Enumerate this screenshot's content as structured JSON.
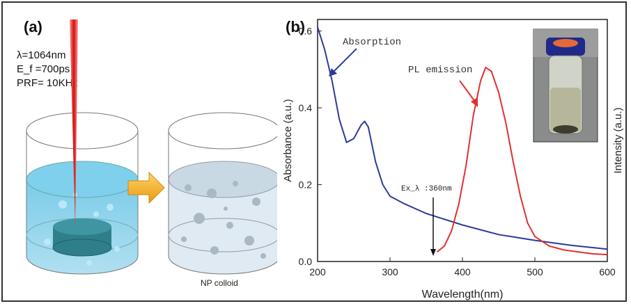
{
  "panel_a": {
    "tag": "(a)",
    "params": [
      "λ=1064nm",
      "E_f =700ps",
      "PRF= 10KHz"
    ],
    "product_label": "NP colloid"
  },
  "panel_b": {
    "tag": "(b)",
    "annotations": {
      "absorption": "Absorption",
      "pl": "PL emission",
      "excitation": "Ex_λ :360nm"
    }
  },
  "chart_data": {
    "type": "line",
    "xlabel": "Wavelength(nm)",
    "ylabel": "Absorbance (a.u.)",
    "y2label": "Intensity (a.u.)",
    "xlim": [
      200,
      600
    ],
    "ylim": [
      0,
      0.63
    ],
    "xticks": [
      200,
      300,
      400,
      500,
      600
    ],
    "yticks": [
      0.0,
      0.2,
      0.4,
      0.6
    ],
    "series": [
      {
        "name": "Absorption",
        "color": "#2b3a9a",
        "x": [
          200,
          210,
          220,
          230,
          240,
          250,
          260,
          265,
          270,
          280,
          290,
          300,
          320,
          350,
          400,
          450,
          500,
          550,
          600
        ],
        "y": [
          0.61,
          0.55,
          0.47,
          0.37,
          0.31,
          0.32,
          0.355,
          0.365,
          0.35,
          0.26,
          0.2,
          0.17,
          0.15,
          0.125,
          0.095,
          0.07,
          0.055,
          0.042,
          0.032
        ]
      },
      {
        "name": "PL emission",
        "color": "#e03030",
        "x": [
          365,
          375,
          385,
          395,
          405,
          415,
          425,
          432,
          440,
          450,
          460,
          470,
          480,
          490,
          500,
          520,
          540,
          560,
          580,
          600
        ],
        "y": [
          0.025,
          0.04,
          0.08,
          0.15,
          0.25,
          0.38,
          0.47,
          0.505,
          0.495,
          0.44,
          0.36,
          0.26,
          0.17,
          0.1,
          0.065,
          0.04,
          0.03,
          0.025,
          0.02,
          0.018
        ]
      }
    ]
  }
}
